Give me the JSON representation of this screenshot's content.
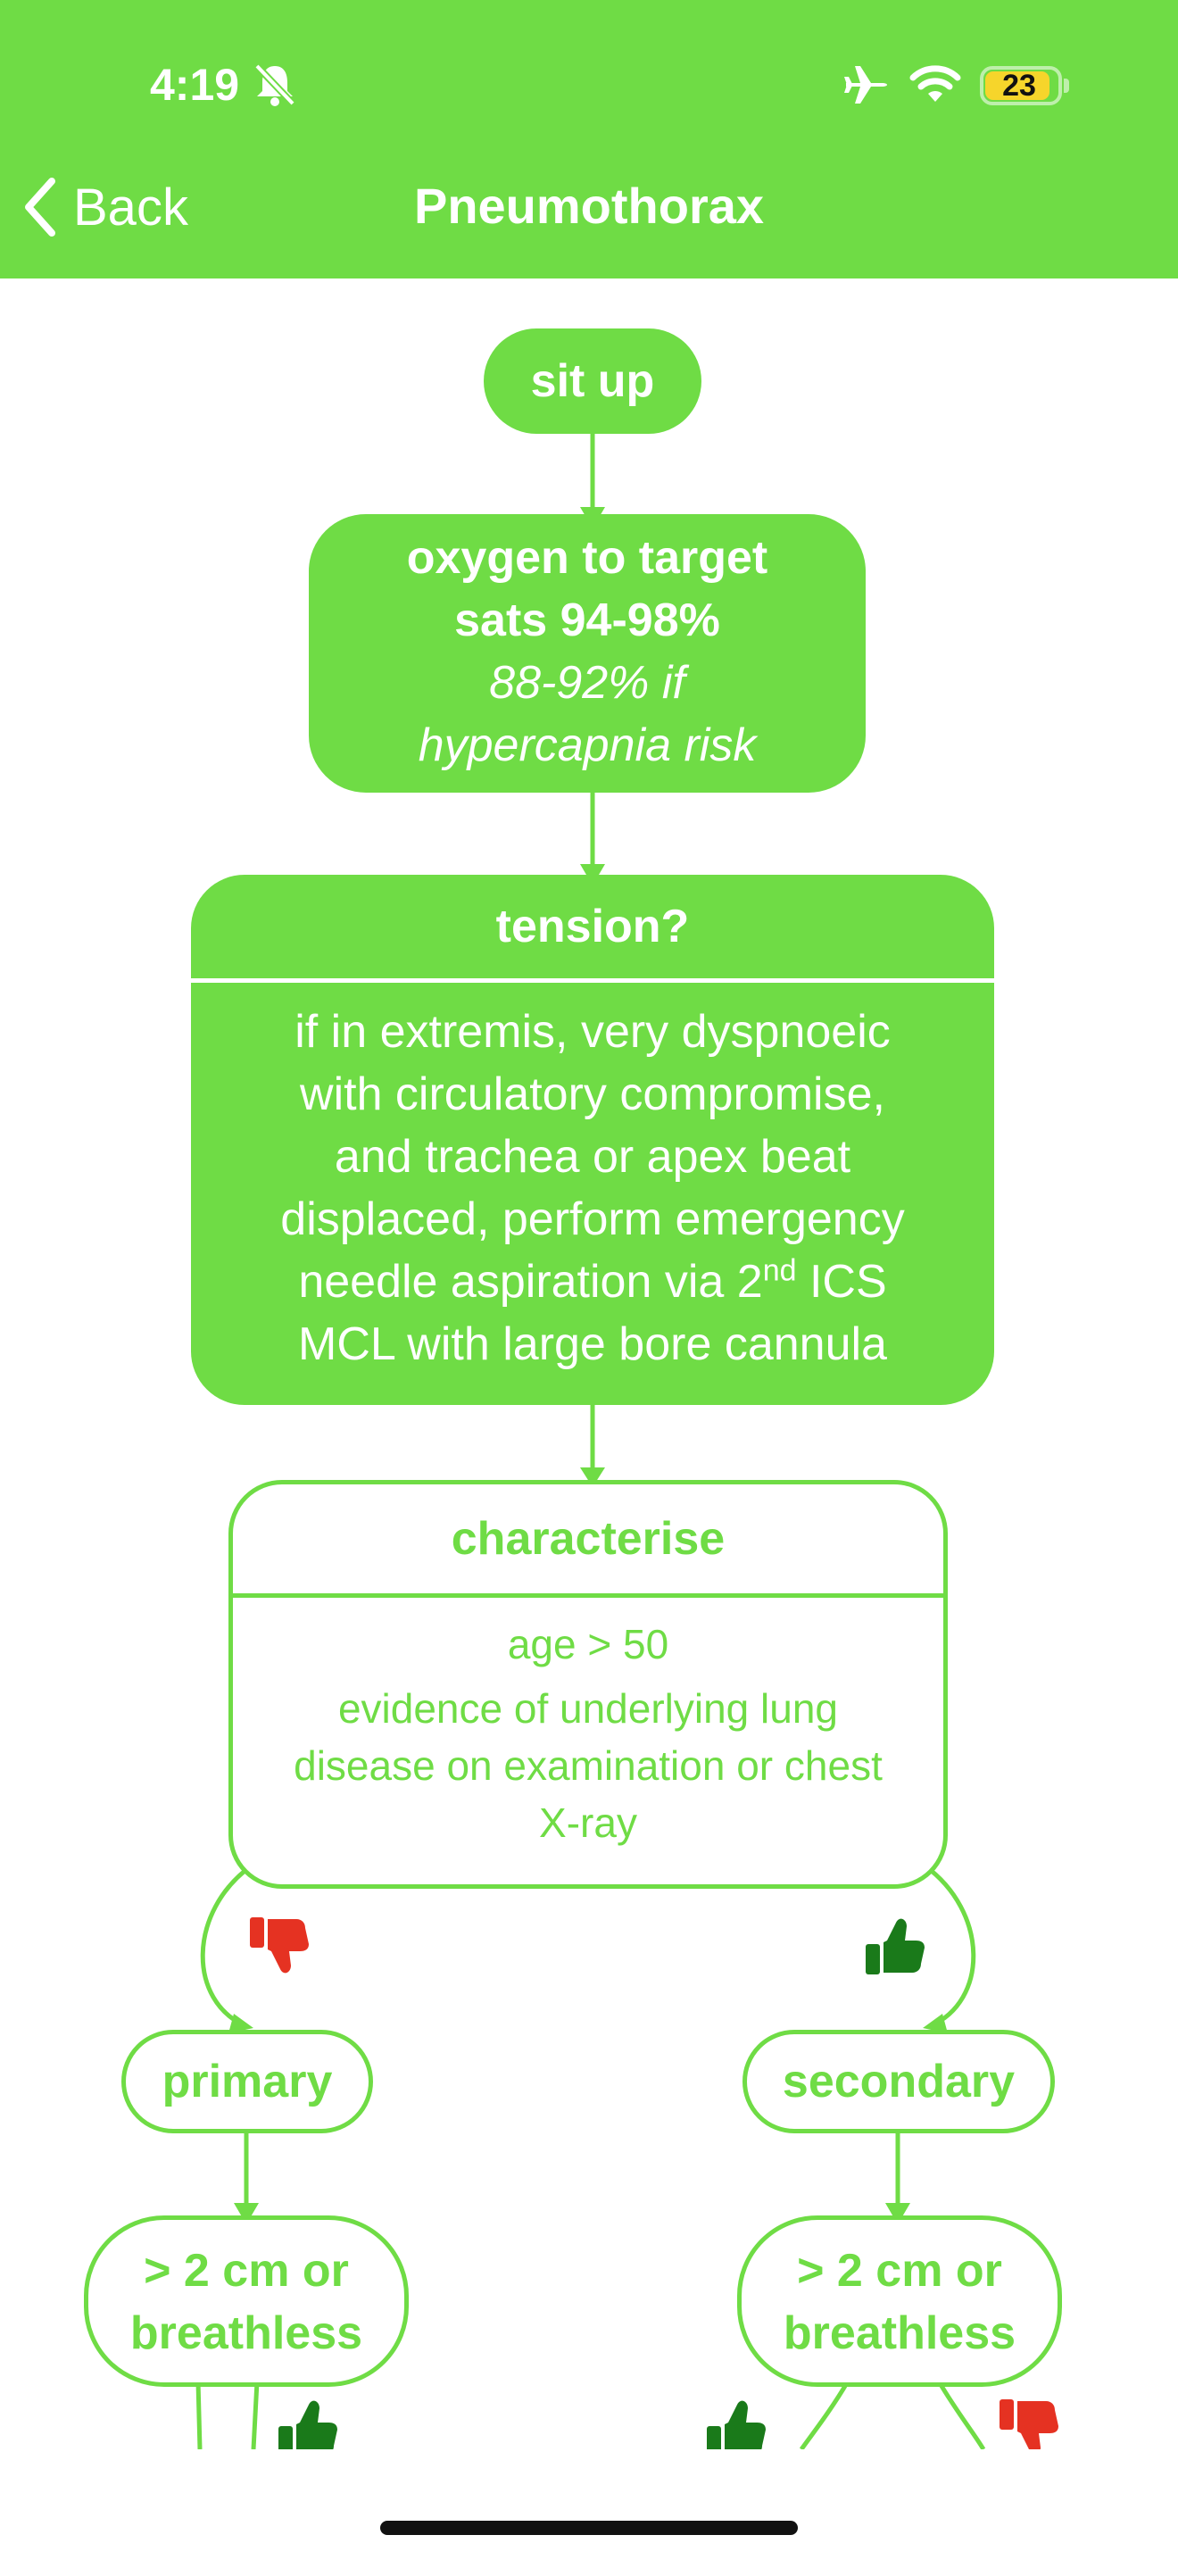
{
  "status_bar": {
    "time": "4:19",
    "battery_level": "23"
  },
  "nav": {
    "back_label": "Back",
    "title": "Pneumothorax"
  },
  "flowchart": {
    "sit_up": "sit up",
    "oxygen": {
      "line1": "oxygen to target",
      "line2": "sats 94-98%",
      "line3": "88-92% if",
      "line4": "hypercapnia risk"
    },
    "tension": {
      "heading": "tension?",
      "line1": "if in extremis, very dyspnoeic",
      "line2": "with circulatory compromise,",
      "line3": "and trachea or apex beat",
      "line4": "displaced, perform emergency",
      "line5_pre": "needle aspiration via 2",
      "line5_sup": "nd",
      "line5_post": " ICS",
      "line6": "MCL with large bore cannula"
    },
    "characterise": {
      "heading": "characterise",
      "line1": "age > 50",
      "line2": "evidence of underlying lung",
      "line3": "disease on examination or chest",
      "line4": "X-ray"
    },
    "primary": "primary",
    "secondary": "secondary",
    "left_question": {
      "line1": "> 2 cm or",
      "line2": "breathless"
    },
    "right_question": {
      "line1": "> 2 cm or",
      "line2": "breathless"
    }
  },
  "colors": {
    "brand_green": "#6fdc45",
    "no_red": "#e53222",
    "yes_green": "#1a7a1a"
  }
}
